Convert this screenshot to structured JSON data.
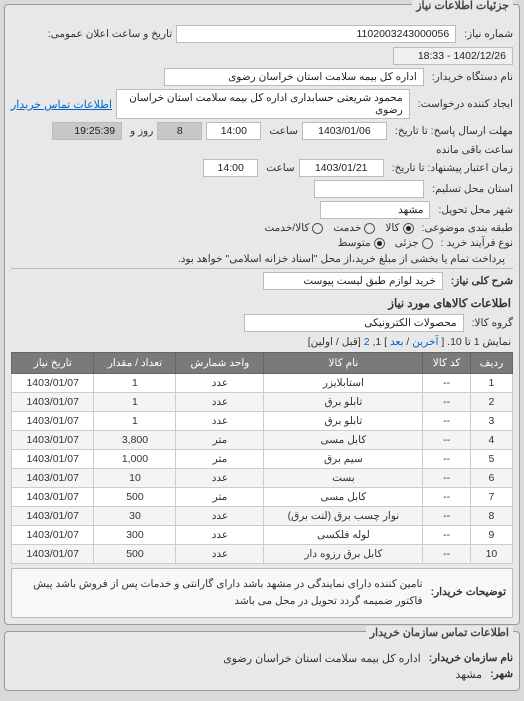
{
  "panel1": {
    "title": "جزئیات اطلاعات نیاز",
    "request_no_label": "شماره نیاز:",
    "request_no": "1102003243000056",
    "announce_label": "تاریخ و ساعت اعلان عمومی:",
    "announce_value": "1402/12/26 - 18:33",
    "buyer_org_label": "نام دستگاه خریدار:",
    "buyer_org": "اداره کل بیمه سلامت استان خراسان رضوی",
    "requester_label": "ایجاد کننده درخواست:",
    "requester": "محمود شریعتی حسابداری اداره کل بیمه سلامت استان خراسان رضوی",
    "contact_link": "اطلاعات تماس خریدار",
    "deadline_label": "مهلت ارسال پاسخ: تا تاریخ:",
    "deadline_date": "1403/01/06",
    "saaat": "ساعت",
    "deadline_time": "14:00",
    "days": "8",
    "rooz_va": "روز و",
    "remain_time": "19:25:39",
    "remain_label": "ساعت باقی مانده",
    "valid_label": "زمان اعتبار پیشنهاد: تا تاریخ:",
    "valid_date": "1403/01/21",
    "valid_time": "14:00",
    "trade_province_label": "استان محل تسلیم:",
    "trade_city_label": "شهر محل تحویل:",
    "trade_city": "مشهد",
    "class_label": "طبقه بندی موضوعی:",
    "class_opts": {
      "kala": "کالا",
      "khadamat": "خدمت",
      "both": "کالا/خدمت"
    },
    "process_label": "نوع فرآیند خرید :",
    "process_opts": {
      "motavasset": "متوسط",
      "jozei": "جزئی"
    },
    "process_note": "پرداخت تمام یا بخشی از مبلغ خرید،از محل \"اسناد خزانه اسلامی\" خواهد بود.",
    "subject_label": "شرح کلی نیاز:",
    "subject_value": "خرید لوازم طبق لیست پیوست"
  },
  "goods_section": {
    "title": "اطلاعات کالاهای مورد نیاز",
    "group_label": "گروه کالا:",
    "group_value": "محصولات الکترونیکی",
    "pager_prefix": "نمایش 1 تا 10. [",
    "pager_prev": "آخرین",
    "pager_sep": "/",
    "pager_next": "بعد",
    "pager_suffix": "] 1,",
    "pager_page2": "2",
    "pager_tail": "[قبل / اولین]",
    "headers": [
      "ردیف",
      "کد کالا",
      "نام کالا",
      "واحد شمارش",
      "تعداد / مقدار",
      "تاریخ نیاز"
    ],
    "rows": [
      [
        "1",
        "--",
        "استابلایزر",
        "عدد",
        "1",
        "1403/01/07"
      ],
      [
        "2",
        "--",
        "تابلو برق",
        "عدد",
        "1",
        "1403/01/07"
      ],
      [
        "3",
        "--",
        "تابلو برق",
        "عدد",
        "1",
        "1403/01/07"
      ],
      [
        "4",
        "--",
        "کابل مسی",
        "متر",
        "3,800",
        "1403/01/07"
      ],
      [
        "5",
        "--",
        "سیم برق",
        "متر",
        "1,000",
        "1403/01/07"
      ],
      [
        "6",
        "--",
        "بست",
        "عدد",
        "10",
        "1403/01/07"
      ],
      [
        "7",
        "--",
        "کابل مسی",
        "متر",
        "500",
        "1403/01/07"
      ],
      [
        "8",
        "--",
        "نوار چسب برق (لنت برق)",
        "عدد",
        "30",
        "1403/01/07"
      ],
      [
        "9",
        "--",
        "لوله فلکسی",
        "عدد",
        "300",
        "1403/01/07"
      ],
      [
        "10",
        "--",
        "کابل برق رزوه دار",
        "عدد",
        "500",
        "1403/01/07"
      ]
    ],
    "note_label": "توضیحات خریدار:",
    "note_text": "تامین کننده دارای نمایندگی در مشهد باشد دارای گارانتی و خدمات پس از فروش باشد پیش فاکتور ضمیمه گردد تحویل در محل می باشد"
  },
  "contact_section": {
    "title": "اطلاعات تماس سازمان خریدار",
    "org_label": "نام سازمان خریدار:",
    "org_value": "اداره کل بیمه سلامت استان خراسان رضوی",
    "city_label": "شهر:",
    "city_value": "مشهد"
  }
}
